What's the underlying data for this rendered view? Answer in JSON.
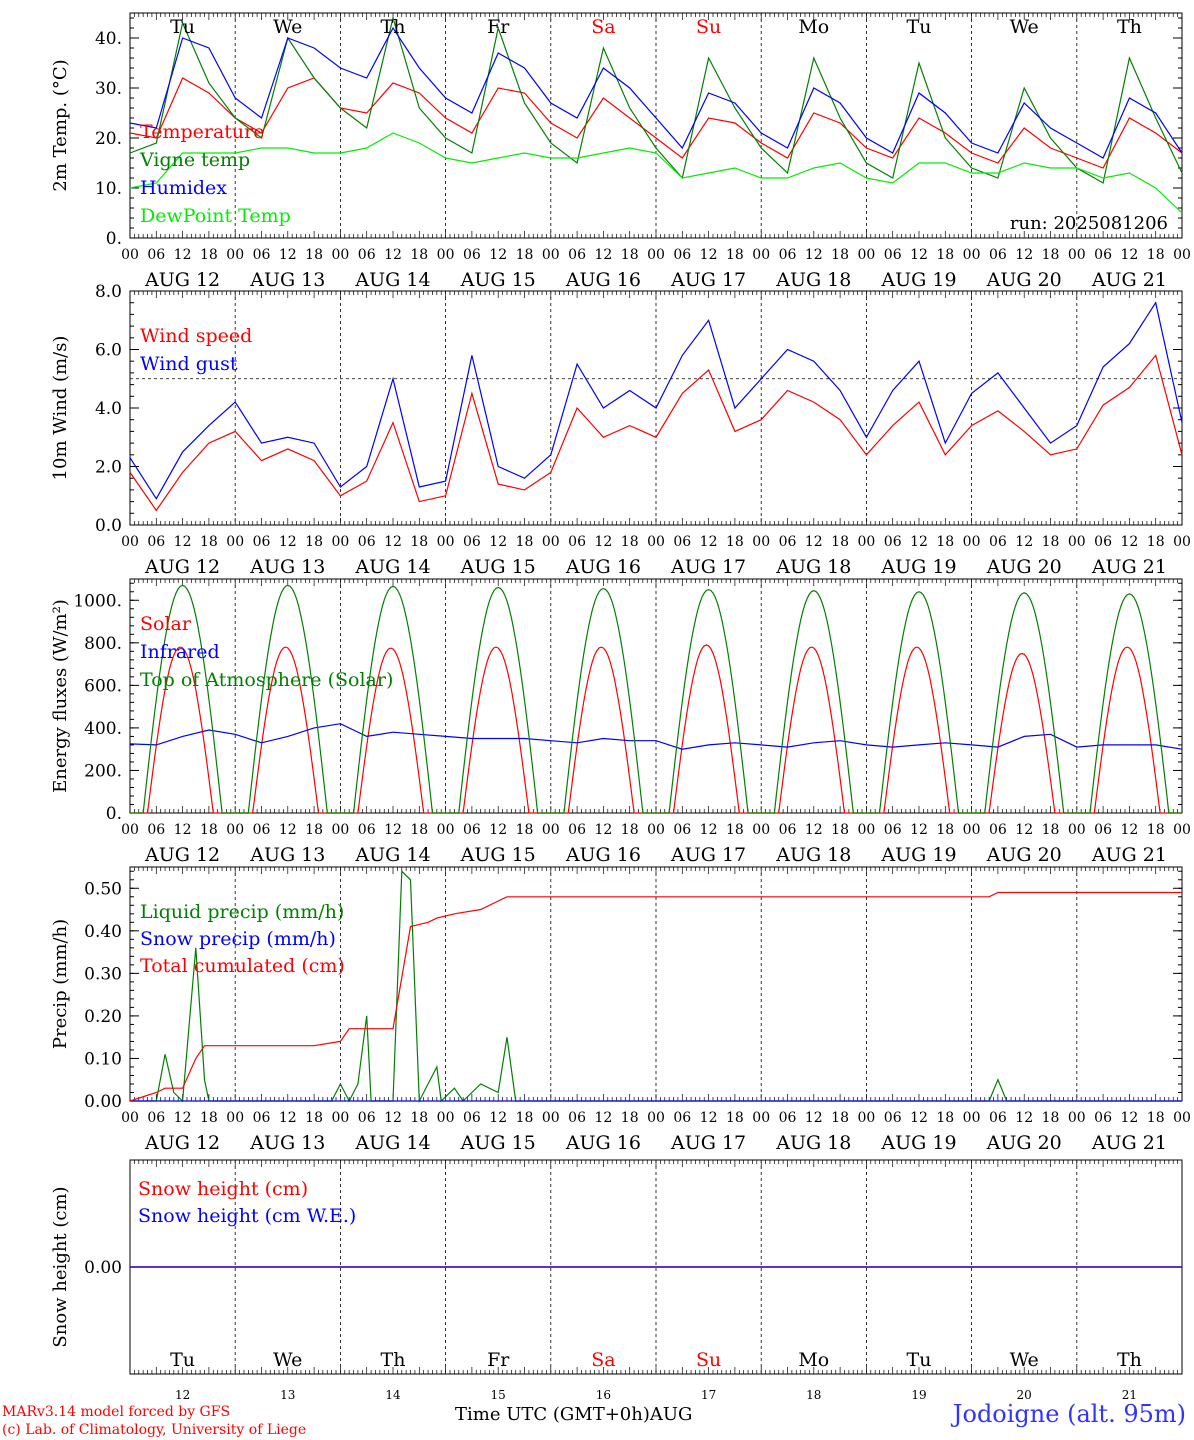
{
  "run_label": "run: 2025081206",
  "credits": [
    "MARv3.14 model forced by GFS",
    "(c) Lab. of Climatology, University of Liege"
  ],
  "station": "Jodoigne (alt. 95m)",
  "time_axis_label": "Time UTC (GMT+0h)AUG",
  "days": [
    {
      "dow": "Tu",
      "date": "AUG 12",
      "num": "12",
      "weekend": false
    },
    {
      "dow": "We",
      "date": "AUG 13",
      "num": "13",
      "weekend": false
    },
    {
      "dow": "Th",
      "date": "AUG 14",
      "num": "14",
      "weekend": false
    },
    {
      "dow": "Fr",
      "date": "AUG 15",
      "num": "15",
      "weekend": false
    },
    {
      "dow": "Sa",
      "date": "AUG 16",
      "num": "16",
      "weekend": true
    },
    {
      "dow": "Su",
      "date": "AUG 17",
      "num": "17",
      "weekend": true
    },
    {
      "dow": "Mo",
      "date": "AUG 18",
      "num": "18",
      "weekend": false
    },
    {
      "dow": "Tu",
      "date": "AUG 19",
      "num": "19",
      "weekend": false
    },
    {
      "dow": "We",
      "date": "AUG 20",
      "num": "20",
      "weekend": false
    },
    {
      "dow": "Th",
      "date": "AUG 21",
      "num": "21",
      "weekend": false
    }
  ],
  "hour_ticks": [
    "00",
    "06",
    "12",
    "18"
  ],
  "colors": {
    "red": "#ff0000",
    "green": "#008000",
    "blue": "#0000ff",
    "lightgreen": "#00ee00",
    "weekend": "#ff0000"
  },
  "chart_data": [
    {
      "id": "temp",
      "type": "line",
      "ylabel": "2m Temp. (°C)",
      "ylim": [
        0,
        45
      ],
      "yticks": [
        0,
        10,
        20,
        30,
        40
      ],
      "ytick_labels": [
        "0.",
        "10.",
        "20.",
        "30.",
        "40."
      ],
      "x_hours": [
        0,
        6,
        12,
        18,
        24,
        30,
        36,
        42,
        48,
        54,
        60,
        66,
        72,
        78,
        84,
        90,
        96,
        102,
        108,
        114,
        120,
        126,
        132,
        138,
        144,
        150,
        156,
        162,
        168,
        174,
        180,
        186,
        192,
        198,
        204,
        210,
        216,
        222,
        228,
        234,
        240
      ],
      "series": [
        {
          "name": "Temperature",
          "color": "red",
          "values": [
            21,
            20,
            32,
            29,
            24,
            21,
            30,
            32,
            26,
            25,
            31,
            29,
            24,
            21,
            30,
            29,
            23,
            20,
            28,
            24,
            20,
            16,
            24,
            23,
            19,
            16,
            25,
            23,
            18,
            16,
            24,
            21,
            17,
            15,
            22,
            18,
            16,
            14,
            24,
            21,
            17
          ]
        },
        {
          "name": "Vigne temp",
          "color": "green",
          "values": [
            17,
            19,
            43,
            31,
            24,
            20,
            40,
            32,
            26,
            22,
            44,
            26,
            20,
            17,
            42,
            27,
            19,
            15,
            38,
            26,
            18,
            12,
            36,
            26,
            18,
            13,
            36,
            24,
            15,
            12,
            35,
            20,
            14,
            12,
            30,
            20,
            14,
            11,
            36,
            24,
            13
          ]
        },
        {
          "name": "Humidex",
          "color": "blue",
          "values": [
            23,
            22,
            40,
            38,
            28,
            24,
            40,
            38,
            34,
            32,
            42,
            34,
            28,
            25,
            37,
            34,
            27,
            24,
            34,
            30,
            24,
            18,
            29,
            27,
            21,
            18,
            30,
            27,
            20,
            17,
            29,
            25,
            19,
            17,
            27,
            22,
            19,
            16,
            28,
            25,
            17
          ]
        },
        {
          "name": "DewPoint Temp",
          "color": "lightgreen",
          "values": [
            10,
            11,
            17,
            17,
            17,
            18,
            18,
            17,
            17,
            18,
            21,
            19,
            16,
            15,
            16,
            17,
            16,
            16,
            17,
            18,
            17,
            12,
            13,
            14,
            12,
            12,
            14,
            15,
            12,
            11,
            15,
            15,
            13,
            13,
            15,
            14,
            14,
            12,
            13,
            10,
            5
          ]
        }
      ]
    },
    {
      "id": "wind",
      "type": "line",
      "ylabel": "10m Wind (m/s)",
      "ylim": [
        0,
        8
      ],
      "yticks": [
        0,
        2,
        4,
        6,
        8
      ],
      "ytick_labels": [
        "0.0",
        "2.0",
        "4.0",
        "6.0",
        "8.0"
      ],
      "reference_line": 5,
      "x_hours": [
        0,
        6,
        12,
        18,
        24,
        30,
        36,
        42,
        48,
        54,
        60,
        66,
        72,
        78,
        84,
        90,
        96,
        102,
        108,
        114,
        120,
        126,
        132,
        138,
        144,
        150,
        156,
        162,
        168,
        174,
        180,
        186,
        192,
        198,
        204,
        210,
        216,
        222,
        228,
        234,
        240
      ],
      "series": [
        {
          "name": "Wind speed",
          "color": "red",
          "values": [
            1.8,
            0.5,
            1.8,
            2.8,
            3.2,
            2.2,
            2.6,
            2.2,
            1.0,
            1.5,
            3.5,
            0.8,
            1.0,
            4.5,
            1.4,
            1.2,
            1.8,
            4.0,
            3.0,
            3.4,
            3.0,
            4.5,
            5.3,
            3.2,
            3.6,
            4.6,
            4.2,
            3.6,
            2.4,
            3.4,
            4.2,
            2.4,
            3.4,
            3.9,
            3.2,
            2.4,
            2.6,
            4.1,
            4.7,
            5.8,
            2.4
          ]
        },
        {
          "name": "Wind gust",
          "color": "blue",
          "values": [
            2.3,
            0.9,
            2.5,
            3.4,
            4.2,
            2.8,
            3.0,
            2.8,
            1.3,
            2.0,
            5.0,
            1.3,
            1.5,
            5.8,
            2.0,
            1.6,
            2.4,
            5.5,
            4.0,
            4.6,
            4.0,
            5.8,
            7.0,
            4.0,
            5.0,
            6.0,
            5.6,
            4.6,
            3.0,
            4.6,
            5.6,
            2.8,
            4.5,
            5.2,
            4.0,
            2.8,
            3.4,
            5.4,
            6.2,
            7.6,
            3.5
          ]
        }
      ]
    },
    {
      "id": "flux",
      "type": "line",
      "ylabel": "Energy fluxes (W/m²)",
      "ylim": [
        0,
        1100
      ],
      "yticks": [
        0,
        200,
        400,
        600,
        800,
        1000
      ],
      "ytick_labels": [
        "0.",
        "200.",
        "400.",
        "600.",
        "800.",
        "1000."
      ],
      "x_hours": [
        0,
        6,
        12,
        18,
        24,
        30,
        36,
        42,
        48,
        54,
        60,
        66,
        72,
        78,
        84,
        90,
        96,
        102,
        108,
        114,
        120,
        126,
        132,
        138,
        144,
        150,
        156,
        162,
        168,
        174,
        180,
        186,
        192,
        198,
        204,
        210,
        216,
        222,
        228,
        234,
        240
      ],
      "series": [
        {
          "name": "Solar",
          "color": "red",
          "days_peak": [
            780,
            780,
            775,
            780,
            780,
            790,
            780,
            780,
            750,
            780
          ],
          "daylight_hours": [
            4,
            19
          ]
        },
        {
          "name": "Infrared",
          "color": "blue",
          "values": [
            325,
            320,
            360,
            390,
            370,
            330,
            360,
            400,
            420,
            360,
            380,
            370,
            360,
            350,
            350,
            350,
            340,
            330,
            350,
            340,
            340,
            300,
            320,
            330,
            320,
            310,
            330,
            340,
            320,
            310,
            320,
            330,
            320,
            310,
            360,
            370,
            310,
            320,
            320,
            320,
            300
          ]
        },
        {
          "name": "Top of Atmosphere (Solar)",
          "color": "green",
          "days_peak": [
            1070,
            1070,
            1065,
            1060,
            1055,
            1050,
            1045,
            1040,
            1035,
            1030
          ],
          "daylight_hours": [
            3,
            21
          ]
        }
      ]
    },
    {
      "id": "precip",
      "type": "line",
      "ylabel": "Precip (mm/h)",
      "ylim": [
        0,
        0.55
      ],
      "yticks": [
        0,
        0.1,
        0.2,
        0.3,
        0.4,
        0.5
      ],
      "ytick_labels": [
        "0.00",
        "0.10",
        "0.20",
        "0.30",
        "0.40",
        "0.50"
      ],
      "series": [
        {
          "name": "Liquid precip (mm/h)",
          "color": "green",
          "points": [
            [
              0,
              0
            ],
            [
              6,
              0
            ],
            [
              8,
              0.11
            ],
            [
              10,
              0.02
            ],
            [
              12,
              0
            ],
            [
              15,
              0.36
            ],
            [
              17,
              0.05
            ],
            [
              18,
              0
            ],
            [
              46,
              0
            ],
            [
              48,
              0.04
            ],
            [
              50,
              0
            ],
            [
              52,
              0.04
            ],
            [
              54,
              0.2
            ],
            [
              55,
              0
            ],
            [
              60,
              0
            ],
            [
              62,
              0.54
            ],
            [
              64,
              0.52
            ],
            [
              66,
              0
            ],
            [
              70,
              0.08
            ],
            [
              71,
              0
            ],
            [
              74,
              0.03
            ],
            [
              76,
              0
            ],
            [
              80,
              0.04
            ],
            [
              84,
              0.02
            ],
            [
              86,
              0.15
            ],
            [
              88,
              0
            ],
            [
              196,
              0
            ],
            [
              198,
              0.05
            ],
            [
              200,
              0
            ],
            [
              240,
              0
            ]
          ]
        },
        {
          "name": "Snow precip (mm/h)",
          "color": "blue",
          "points": [
            [
              0,
              0
            ],
            [
              240,
              0
            ]
          ]
        },
        {
          "name": "Total cumulated (cm)",
          "color": "red",
          "points": [
            [
              0,
              0
            ],
            [
              6,
              0.02
            ],
            [
              8,
              0.03
            ],
            [
              12,
              0.03
            ],
            [
              15,
              0.1
            ],
            [
              17,
              0.13
            ],
            [
              42,
              0.13
            ],
            [
              48,
              0.14
            ],
            [
              50,
              0.17
            ],
            [
              60,
              0.17
            ],
            [
              64,
              0.41
            ],
            [
              68,
              0.42
            ],
            [
              70,
              0.43
            ],
            [
              74,
              0.44
            ],
            [
              80,
              0.45
            ],
            [
              84,
              0.47
            ],
            [
              86,
              0.48
            ],
            [
              196,
              0.48
            ],
            [
              198,
              0.49
            ],
            [
              240,
              0.49
            ]
          ]
        }
      ]
    },
    {
      "id": "snow",
      "type": "line",
      "ylabel": "Snow height (cm)",
      "ylim": [
        -1,
        1
      ],
      "yticks": [
        0
      ],
      "ytick_labels": [
        "0.00"
      ],
      "series": [
        {
          "name": "Snow height (cm)",
          "color": "red",
          "points": [
            [
              0,
              0
            ],
            [
              240,
              0
            ]
          ]
        },
        {
          "name": "Snow height (cm W.E.)",
          "color": "blue",
          "points": [
            [
              0,
              0
            ],
            [
              240,
              0
            ]
          ]
        }
      ]
    }
  ]
}
